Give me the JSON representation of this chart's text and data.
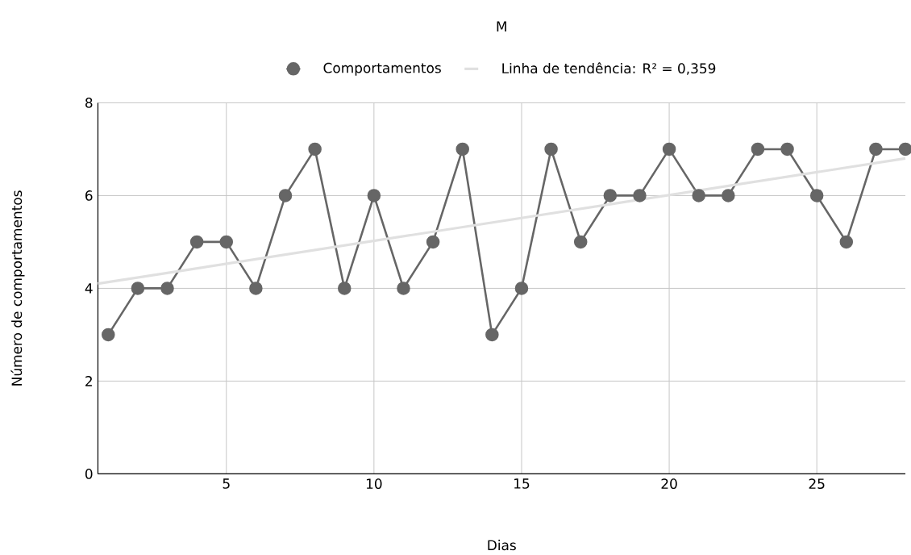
{
  "chart_data": {
    "type": "line",
    "title": "M",
    "xlabel": "Dias",
    "ylabel": "Número de comportamentos",
    "xlim": [
      0.65,
      28
    ],
    "ylim": [
      0,
      8
    ],
    "xticks": [
      5,
      10,
      15,
      20,
      25
    ],
    "yticks": [
      0,
      2,
      4,
      6,
      8
    ],
    "grid": true,
    "legend": "top",
    "marker": "circle",
    "series": [
      {
        "name": "Comportamentos",
        "color": "#666666",
        "x": [
          1,
          2,
          3,
          4,
          5,
          6,
          7,
          8,
          9,
          10,
          11,
          12,
          13,
          14,
          15,
          16,
          17,
          18,
          19,
          20,
          21,
          22,
          23,
          24,
          25,
          26,
          27,
          28
        ],
        "values": [
          3,
          4,
          4,
          5,
          5,
          4,
          6,
          7,
          4,
          6,
          4,
          5,
          7,
          3,
          4,
          7,
          5,
          6,
          6,
          7,
          6,
          6,
          7,
          7,
          6,
          5,
          7,
          7
        ]
      },
      {
        "name": "Linha de tendência: R² = 0,359",
        "type": "line",
        "marker": "none",
        "color": "#e0e0e0",
        "x": [
          0.65,
          28
        ],
        "values": [
          4.1,
          6.8
        ]
      }
    ]
  }
}
